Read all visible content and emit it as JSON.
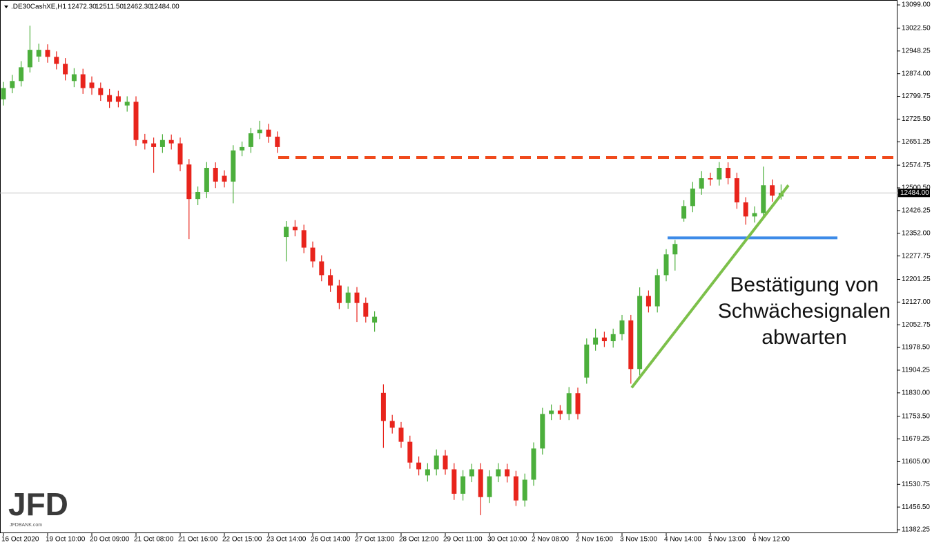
{
  "chart_data": {
    "type": "candlestick",
    "title": ".DE30CashXE,H1",
    "header_values": [
      "12472.30",
      "12511.50",
      "12462.30",
      "12484.00"
    ],
    "categories": [
      "16 Oct 2020",
      null,
      null,
      null,
      null,
      "19 Oct 10:00",
      null,
      null,
      null,
      null,
      "20 Oct 09:00",
      null,
      null,
      null,
      null,
      "21 Oct 08:00",
      null,
      null,
      null,
      null,
      "21 Oct 16:00",
      null,
      null,
      null,
      null,
      "22 Oct 15:00",
      null,
      null,
      null,
      null,
      "23 Oct 14:00",
      null,
      null,
      null,
      null,
      "26 Oct 14:00",
      null,
      null,
      null,
      null,
      "27 Oct 13:00",
      null,
      null,
      null,
      null,
      "28 Oct 12:00",
      null,
      null,
      null,
      null,
      "29 Oct 11:00",
      null,
      null,
      null,
      null,
      "30 Oct 10:00",
      null,
      null,
      null,
      null,
      "2 Nov 08:00",
      null,
      null,
      null,
      null,
      "2 Nov 16:00",
      null,
      null,
      null,
      null,
      "3 Nov 15:00",
      null,
      null,
      null,
      null,
      "4 Nov 14:00",
      null,
      null,
      null,
      null,
      "5 Nov 13:00",
      null,
      null,
      null,
      null,
      "6 Nov 12:00",
      null,
      null,
      null
    ],
    "open": [
      12790,
      12827,
      12850,
      12895,
      12930,
      12952,
      12929,
      12906,
      12850,
      12872,
      12845,
      12827,
      12804,
      12800,
      12770,
      12782,
      12657,
      12646,
      12634,
      12657,
      12646,
      12577,
      12464,
      12487,
      12566,
      12540,
      12521,
      12623,
      12634,
      12679,
      12691,
      12668,
      12340,
      12373,
      12362,
      12305,
      12260,
      12215,
      12181,
      12124,
      12158,
      12124,
      12060,
      11830,
      11738,
      11716,
      11670,
      11602,
      11560,
      11580,
      11625,
      11580,
      11500,
      11557,
      11580,
      11489,
      11557,
      11580,
      11557,
      11478,
      11546,
      11648,
      11761,
      11772,
      11761,
      11829,
      11880,
      11988,
      12011,
      11999,
      12022,
      12067,
      11908,
      12147,
      12113,
      12215,
      12283,
      12400,
      12441,
      12498,
      12532,
      12528,
      12566,
      12532,
      12453,
      12407,
      12418,
      12509,
      12472.3
    ],
    "high": [
      12847,
      12870,
      12915,
      13031,
      12972,
      12970,
      12947,
      12925,
      12892,
      12890,
      12865,
      12845,
      12824,
      12818,
      12800,
      12800,
      12677,
      12665,
      12676,
      12675,
      12665,
      12595,
      12505,
      12585,
      12584,
      12558,
      12640,
      12652,
      12697,
      12720,
      12710,
      12685,
      12392,
      12395,
      12380,
      12325,
      12280,
      12235,
      12200,
      12178,
      12176,
      12142,
      12097,
      11858,
      11758,
      11735,
      11690,
      11622,
      11600,
      11645,
      11643,
      11600,
      11577,
      11598,
      11600,
      11577,
      11600,
      11598,
      11575,
      11566,
      11668,
      11781,
      11792,
      11790,
      11849,
      11847,
      12008,
      12040,
      12030,
      12040,
      12085,
      12085,
      12175,
      12165,
      12235,
      12300,
      12330,
      12460,
      12520,
      12555,
      12550,
      12585,
      12584,
      12550,
      12470,
      12440,
      12570,
      12528,
      12511.5
    ],
    "low": [
      12770,
      12810,
      12832,
      12878,
      12912,
      12910,
      12888,
      12852,
      12830,
      12808,
      12805,
      12785,
      12762,
      12764,
      12750,
      12638,
      12626,
      12550,
      12615,
      12626,
      12555,
      12333,
      12444,
      12467,
      12500,
      12502,
      12450,
      12604,
      12615,
      12660,
      12648,
      12615,
      12260,
      12342,
      12287,
      12240,
      12195,
      12160,
      12104,
      12105,
      12062,
      12060,
      12030,
      11650,
      11697,
      11650,
      11582,
      11560,
      11540,
      11560,
      11562,
      11480,
      11478,
      11538,
      11430,
      11470,
      11538,
      11537,
      11460,
      11458,
      11526,
      11628,
      11741,
      11742,
      11741,
      11743,
      11860,
      11968,
      11980,
      11978,
      12002,
      11860,
      11888,
      12093,
      12093,
      12195,
      12230,
      12390,
      12421,
      12478,
      12508,
      12508,
      12512,
      12432,
      12380,
      12387,
      12398,
      12455,
      12462.3
    ],
    "close": [
      12827,
      12850,
      12895,
      12952,
      12952,
      12929,
      12906,
      12872,
      12872,
      12827,
      12827,
      12804,
      12782,
      12782,
      12782,
      12657,
      12646,
      12634,
      12657,
      12646,
      12577,
      12464,
      12487,
      12566,
      12521,
      12521,
      12623,
      12634,
      12679,
      12691,
      12668,
      12634,
      12373,
      12362,
      12305,
      12260,
      12215,
      12181,
      12124,
      12158,
      12124,
      12079,
      12079,
      11738,
      11716,
      11670,
      11602,
      11580,
      11580,
      11625,
      11580,
      11500,
      11557,
      11580,
      11489,
      11557,
      11580,
      11557,
      11478,
      11546,
      11648,
      11761,
      11772,
      11761,
      11829,
      11761,
      11988,
      12011,
      11999,
      12022,
      12067,
      11908,
      12147,
      12113,
      12215,
      12283,
      12317,
      12441,
      12498,
      12532,
      12528,
      12566,
      12532,
      12453,
      12407,
      12418,
      12509,
      12475,
      12484
    ],
    "up_color": "#4caf3c",
    "down_color": "#e8241c",
    "ylim": [
      11371,
      13115
    ],
    "yticks": [
      {
        "value": 13099,
        "label": "13099.00"
      },
      {
        "value": 13022.5,
        "label": "13022.50"
      },
      {
        "value": 12948.25,
        "label": "12948.25"
      },
      {
        "value": 12874,
        "label": "12874.00"
      },
      {
        "value": 12799.75,
        "label": "12799.75"
      },
      {
        "value": 12725.5,
        "label": "12725.50"
      },
      {
        "value": 12651.25,
        "label": "12651.25"
      },
      {
        "value": 12574.75,
        "label": "12574.75"
      },
      {
        "value": 12500.5,
        "label": "12500.50"
      },
      {
        "value": 12426.25,
        "label": "12426.25"
      },
      {
        "value": 12352,
        "label": "12352.00"
      },
      {
        "value": 12277.75,
        "label": "12277.75"
      },
      {
        "value": 12201.25,
        "label": "12201.25"
      },
      {
        "value": 12127,
        "label": "12127.00"
      },
      {
        "value": 12052.75,
        "label": "12052.75"
      },
      {
        "value": 11978.5,
        "label": "11978.50"
      },
      {
        "value": 11904.25,
        "label": "11904.25"
      },
      {
        "value": 11830,
        "label": "11830.00"
      },
      {
        "value": 11753.5,
        "label": "11753.50"
      },
      {
        "value": 11679.25,
        "label": "11679.25"
      },
      {
        "value": 11605,
        "label": "11605.00"
      },
      {
        "value": 11530.75,
        "label": "11530.75"
      },
      {
        "value": 11456.5,
        "label": "11456.50"
      },
      {
        "value": 11382.25,
        "label": "11382.25"
      }
    ],
    "last_price": {
      "value": 12484,
      "label": "12484.00"
    },
    "resistance": {
      "value": 12600,
      "color": "#f04a1c"
    },
    "support": {
      "value": 12337,
      "color": "#3d8be8"
    },
    "trendline": {
      "values": [
        11847,
        12509
      ],
      "color": "#7cc04a"
    },
    "annotation": [
      "Bestätigung von",
      "Schwächesignalen",
      "abwarten"
    ]
  },
  "logo": {
    "text": "JFD",
    "url": "JFDBANK.com"
  }
}
